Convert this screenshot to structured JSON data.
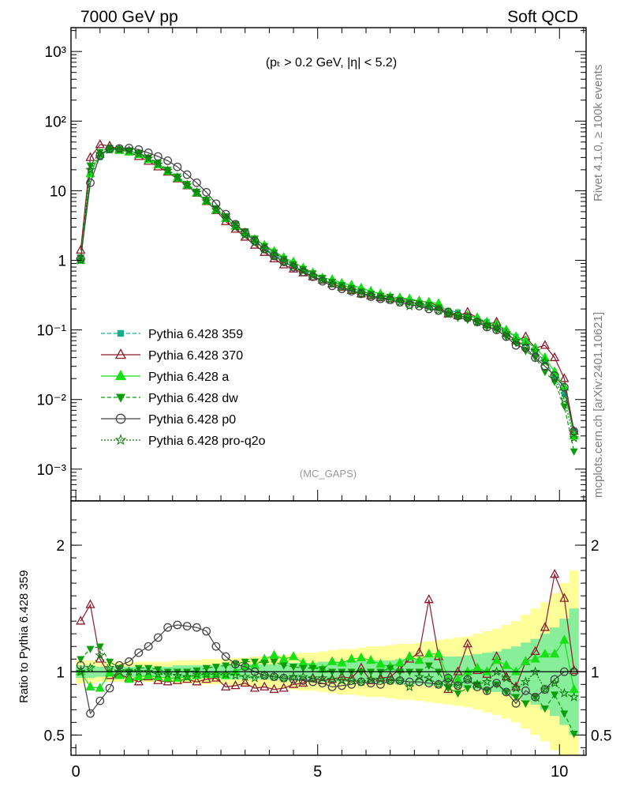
{
  "header": {
    "left_title": "7000 GeV pp",
    "right_title": "Soft QCD",
    "cut_label": "(pₜ > 0.2 GeV, |η| < 5.2)",
    "analysis_label": "(MC_GAPS)"
  },
  "side_labels": {
    "rivet": "Rivet 4.1.0, ≥ 100k events",
    "mcplots": "mcplots.cern.ch [arXiv:2401.10621]"
  },
  "chart_data": [
    {
      "type": "line",
      "name": "main",
      "yscale": "log",
      "xlim": [
        -0.1,
        10.55
      ],
      "ylim": [
        0.00035,
        2200
      ],
      "x": [
        0.1,
        0.3,
        0.5,
        0.7,
        0.9,
        1.1,
        1.3,
        1.5,
        1.7,
        1.9,
        2.1,
        2.3,
        2.5,
        2.7,
        2.9,
        3.1,
        3.3,
        3.5,
        3.7,
        3.9,
        4.1,
        4.3,
        4.5,
        4.7,
        4.9,
        5.1,
        5.3,
        5.5,
        5.7,
        5.9,
        6.1,
        6.3,
        6.5,
        6.7,
        6.9,
        7.1,
        7.3,
        7.5,
        7.7,
        7.9,
        8.1,
        8.3,
        8.5,
        8.7,
        8.9,
        9.1,
        9.3,
        9.5,
        9.7,
        9.9,
        10.1,
        10.3
      ],
      "yticks": [
        {
          "label": "10⁻³",
          "value": 0.001
        },
        {
          "label": "10⁻²",
          "value": 0.01
        },
        {
          "label": "10⁻¹",
          "value": 0.1
        },
        {
          "label": "1",
          "value": 1
        },
        {
          "label": "10",
          "value": 10
        },
        {
          "label": "10²",
          "value": 100
        },
        {
          "label": "10³",
          "value": 1000
        }
      ],
      "series": [
        {
          "name": "Pythia 6.428 359",
          "color": "#17ad8b",
          "marker": "square",
          "dash": "dashed",
          "values": [
            1.0,
            19.5,
            30.0,
            38.0,
            39.0,
            38.0,
            34.0,
            29.0,
            24.5,
            20.0,
            16.0,
            12.5,
            9.6,
            7.2,
            5.4,
            4.1,
            3.1,
            2.4,
            1.9,
            1.5,
            1.2,
            1.0,
            0.85,
            0.73,
            0.63,
            0.55,
            0.49,
            0.44,
            0.4,
            0.36,
            0.33,
            0.31,
            0.29,
            0.27,
            0.25,
            0.24,
            0.22,
            0.21,
            0.19,
            0.18,
            0.16,
            0.145,
            0.13,
            0.11,
            0.095,
            0.08,
            0.065,
            0.05,
            0.035,
            0.022,
            0.012,
            0.0035
          ]
        },
        {
          "name": "Pythia 6.428 370",
          "color": "#8b1a2b",
          "marker": "triangle-open",
          "dash": "solid",
          "values": [
            1.4,
            30.0,
            46.0,
            44.0,
            39.0,
            36.0,
            31.0,
            26.5,
            22.0,
            18.5,
            14.8,
            11.8,
            9.2,
            7.0,
            5.2,
            3.6,
            2.8,
            2.15,
            1.65,
            1.3,
            1.05,
            0.86,
            0.75,
            0.66,
            0.58,
            0.52,
            0.46,
            0.41,
            0.37,
            0.33,
            0.31,
            0.29,
            0.28,
            0.28,
            0.27,
            0.26,
            0.25,
            0.22,
            0.17,
            0.16,
            0.18,
            0.15,
            0.12,
            0.13,
            0.09,
            0.07,
            0.08,
            0.055,
            0.06,
            0.04,
            0.02,
            0.0035
          ]
        },
        {
          "name": "Pythia 6.428 a",
          "color": "#16e016",
          "marker": "triangle",
          "dash": "solid",
          "values": [
            1.0,
            17.5,
            33.0,
            40.0,
            38.0,
            36.0,
            33.0,
            28.0,
            23.5,
            19.0,
            15.2,
            12.0,
            9.3,
            7.1,
            5.3,
            4.0,
            3.1,
            2.5,
            2.0,
            1.65,
            1.35,
            1.1,
            0.95,
            0.78,
            0.66,
            0.56,
            0.53,
            0.47,
            0.44,
            0.4,
            0.36,
            0.33,
            0.3,
            0.29,
            0.28,
            0.26,
            0.25,
            0.24,
            0.18,
            0.17,
            0.16,
            0.15,
            0.13,
            0.12,
            0.1,
            0.08,
            0.07,
            0.055,
            0.04,
            0.025,
            0.015,
            0.003
          ]
        },
        {
          "name": "Pythia 6.428 dw",
          "color": "#0c9c0c",
          "marker": "triangle-down",
          "dash": "dashed",
          "values": [
            1.1,
            23.0,
            36.0,
            41.0,
            40.0,
            38.0,
            35.0,
            30.0,
            25.0,
            20.0,
            16.0,
            12.5,
            9.7,
            7.4,
            5.6,
            4.3,
            3.3,
            2.6,
            2.05,
            1.6,
            1.3,
            1.05,
            0.88,
            0.75,
            0.65,
            0.56,
            0.49,
            0.44,
            0.4,
            0.36,
            0.33,
            0.31,
            0.3,
            0.27,
            0.25,
            0.24,
            0.23,
            0.21,
            0.17,
            0.15,
            0.14,
            0.13,
            0.11,
            0.1,
            0.08,
            0.065,
            0.05,
            0.04,
            0.025,
            0.018,
            0.008,
            0.0018
          ]
        },
        {
          "name": "Pythia 6.428 p0",
          "color": "#444444",
          "marker": "circle-open",
          "dash": "solid",
          "values": [
            1.05,
            13.0,
            32.0,
            40.0,
            40.5,
            41.0,
            39.0,
            35.0,
            31.0,
            27.0,
            22.0,
            17.0,
            13.0,
            9.5,
            6.5,
            4.6,
            3.3,
            2.5,
            1.9,
            1.45,
            1.15,
            0.95,
            0.8,
            0.68,
            0.58,
            0.5,
            0.43,
            0.39,
            0.36,
            0.33,
            0.3,
            0.28,
            0.27,
            0.25,
            0.23,
            0.22,
            0.2,
            0.19,
            0.18,
            0.16,
            0.15,
            0.13,
            0.11,
            0.1,
            0.08,
            0.06,
            0.055,
            0.04,
            0.03,
            0.022,
            0.015,
            0.0035
          ]
        },
        {
          "name": "Pythia 6.428 pro-q2o",
          "color": "#0a7a0a",
          "marker": "star",
          "dash": "dotted",
          "values": [
            1.0,
            20.0,
            34.0,
            39.0,
            39.0,
            38.0,
            34.0,
            29.0,
            24.0,
            19.5,
            15.5,
            12.0,
            9.4,
            7.1,
            5.3,
            4.0,
            3.0,
            2.3,
            1.8,
            1.45,
            1.15,
            0.95,
            0.82,
            0.7,
            0.6,
            0.52,
            0.46,
            0.41,
            0.37,
            0.33,
            0.31,
            0.29,
            0.27,
            0.25,
            0.22,
            0.23,
            0.21,
            0.19,
            0.17,
            0.16,
            0.15,
            0.13,
            0.12,
            0.11,
            0.09,
            0.07,
            0.06,
            0.05,
            0.035,
            0.02,
            0.01,
            0.0028
          ]
        }
      ]
    },
    {
      "type": "line",
      "name": "ratio",
      "ylabel": "Ratio to Pythia 6.428 359",
      "xlim": [
        -0.1,
        10.55
      ],
      "ylim": [
        0.34,
        2.35
      ],
      "reference": 1,
      "x": [
        0.1,
        0.3,
        0.5,
        0.7,
        0.9,
        1.1,
        1.3,
        1.5,
        1.7,
        1.9,
        2.1,
        2.3,
        2.5,
        2.7,
        2.9,
        3.1,
        3.3,
        3.5,
        3.7,
        3.9,
        4.1,
        4.3,
        4.5,
        4.7,
        4.9,
        5.1,
        5.3,
        5.5,
        5.7,
        5.9,
        6.1,
        6.3,
        6.5,
        6.7,
        6.9,
        7.1,
        7.3,
        7.5,
        7.7,
        7.9,
        8.1,
        8.3,
        8.5,
        8.7,
        8.9,
        9.1,
        9.3,
        9.5,
        9.7,
        9.9,
        10.1,
        10.3
      ],
      "xticks": [
        {
          "label": "0",
          "value": 0
        },
        {
          "label": "5",
          "value": 5
        },
        {
          "label": "10",
          "value": 10
        }
      ],
      "yticks": [
        {
          "label": "0.5",
          "value": 0.5
        },
        {
          "label": "1",
          "value": 1
        },
        {
          "label": "2",
          "value": 2
        }
      ],
      "band_green_halfwidth": [
        0.05,
        0.05,
        0.04,
        0.04,
        0.04,
        0.04,
        0.04,
        0.04,
        0.04,
        0.04,
        0.05,
        0.05,
        0.05,
        0.05,
        0.05,
        0.06,
        0.06,
        0.06,
        0.06,
        0.06,
        0.06,
        0.07,
        0.07,
        0.07,
        0.07,
        0.08,
        0.08,
        0.08,
        0.08,
        0.09,
        0.09,
        0.09,
        0.09,
        0.1,
        0.1,
        0.1,
        0.11,
        0.11,
        0.12,
        0.12,
        0.13,
        0.14,
        0.15,
        0.16,
        0.18,
        0.2,
        0.23,
        0.26,
        0.3,
        0.35,
        0.42,
        0.5
      ],
      "band_yellow_halfwidth": [
        0.09,
        0.09,
        0.08,
        0.08,
        0.08,
        0.08,
        0.08,
        0.08,
        0.08,
        0.08,
        0.09,
        0.09,
        0.09,
        0.1,
        0.1,
        0.1,
        0.11,
        0.11,
        0.12,
        0.12,
        0.13,
        0.13,
        0.14,
        0.15,
        0.15,
        0.16,
        0.17,
        0.18,
        0.18,
        0.19,
        0.2,
        0.2,
        0.21,
        0.22,
        0.22,
        0.23,
        0.24,
        0.25,
        0.26,
        0.27,
        0.28,
        0.3,
        0.32,
        0.34,
        0.37,
        0.4,
        0.45,
        0.5,
        0.55,
        0.62,
        0.7,
        0.8
      ],
      "series": [
        {
          "name": "Pythia 6.428 370",
          "color": "#8b1a2b",
          "marker": "triangle-open",
          "dash": "solid",
          "values": [
            1.4,
            1.53,
            1.1,
            0.97,
            0.98,
            0.95,
            0.92,
            0.96,
            0.93,
            0.92,
            0.93,
            0.94,
            0.92,
            0.94,
            0.95,
            0.88,
            0.89,
            0.91,
            0.87,
            0.88,
            0.86,
            0.87,
            0.9,
            0.91,
            0.95,
            0.93,
            0.94,
            0.96,
            0.95,
            1.03,
            0.93,
            0.95,
            0.96,
            1.02,
            1.1,
            1.15,
            1.57,
            1.12,
            0.86,
            1.0,
            1.22,
            1.01,
            0.98,
            1.12,
            0.96,
            0.88,
            1.08,
            1.16,
            1.35,
            1.77,
            1.58,
            1.01
          ]
        },
        {
          "name": "Pythia 6.428 a",
          "color": "#16e016",
          "marker": "triangle",
          "dash": "solid",
          "values": [
            1.0,
            0.88,
            0.87,
            0.99,
            0.97,
            0.94,
            0.96,
            0.97,
            0.96,
            0.95,
            0.95,
            0.96,
            0.97,
            0.98,
            0.98,
            0.97,
            1.0,
            1.04,
            1.05,
            1.1,
            1.13,
            1.1,
            1.12,
            1.07,
            1.05,
            1.02,
            1.08,
            1.07,
            1.1,
            1.11,
            1.09,
            1.06,
            1.04,
            1.07,
            1.12,
            1.09,
            1.14,
            1.14,
            0.95,
            0.94,
            1.0,
            1.03,
            1.0,
            1.09,
            1.05,
            1.0,
            1.08,
            1.1,
            1.14,
            1.14,
            1.25,
            0.86
          ]
        },
        {
          "name": "Pythia 6.428 dw",
          "color": "#0c9c0c",
          "marker": "triangle-down",
          "dash": "dashed",
          "values": [
            1.1,
            1.18,
            1.2,
            1.08,
            1.03,
            1.0,
            1.03,
            1.03,
            1.02,
            1.0,
            1.0,
            1.0,
            1.01,
            1.03,
            1.04,
            1.05,
            1.06,
            1.08,
            1.08,
            1.07,
            1.08,
            1.05,
            1.04,
            1.03,
            1.03,
            1.02,
            1.0,
            1.0,
            1.0,
            1.0,
            1.0,
            1.0,
            1.03,
            1.0,
            1.0,
            1.0,
            1.05,
            1.0,
            0.87,
            0.83,
            0.87,
            0.9,
            0.85,
            0.9,
            0.84,
            0.8,
            0.75,
            0.8,
            0.71,
            0.82,
            0.67,
            0.51
          ]
        },
        {
          "name": "Pythia 6.428 p0",
          "color": "#444444",
          "marker": "circle-open",
          "dash": "solid",
          "values": [
            1.05,
            0.67,
            0.77,
            0.87,
            1.05,
            1.08,
            1.15,
            1.2,
            1.27,
            1.35,
            1.37,
            1.36,
            1.35,
            1.32,
            1.2,
            1.12,
            1.06,
            1.04,
            1.0,
            0.97,
            0.96,
            0.95,
            0.94,
            0.93,
            0.92,
            0.91,
            0.88,
            0.89,
            0.9,
            0.92,
            0.91,
            0.9,
            0.93,
            0.93,
            0.92,
            0.92,
            0.91,
            0.9,
            0.95,
            0.89,
            0.94,
            0.88,
            0.85,
            0.91,
            0.84,
            0.75,
            0.85,
            0.8,
            0.86,
            0.94,
            1.0,
            1.0
          ]
        },
        {
          "name": "Pythia 6.428 pro-q2o",
          "color": "#0a7a0a",
          "marker": "star",
          "dash": "dotted",
          "values": [
            1.0,
            1.03,
            1.13,
            1.03,
            1.0,
            1.0,
            1.0,
            1.0,
            0.98,
            0.98,
            0.97,
            0.96,
            0.98,
            0.98,
            0.98,
            0.98,
            0.97,
            0.96,
            0.95,
            0.97,
            0.96,
            0.95,
            0.96,
            0.96,
            0.95,
            0.95,
            0.94,
            0.93,
            0.93,
            0.92,
            0.94,
            0.94,
            0.93,
            0.93,
            0.88,
            0.96,
            0.95,
            0.9,
            0.89,
            0.89,
            0.94,
            0.9,
            0.92,
            1.0,
            0.95,
            0.87,
            0.92,
            1.0,
            0.86,
            0.91,
            0.83,
            0.8
          ]
        }
      ]
    }
  ]
}
